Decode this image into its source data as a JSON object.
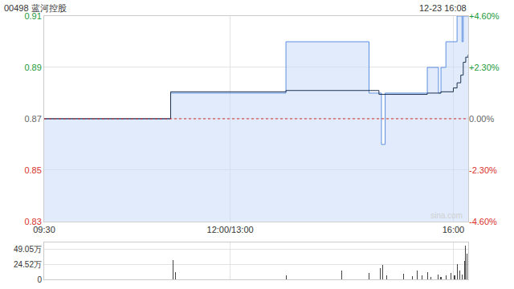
{
  "chart_data": [
    {
      "type": "line",
      "title": "00498 蓝河控股",
      "subtitle": "12-23 16:08",
      "annotations": [
        "sina.com"
      ],
      "prev_close": 0.87,
      "xlim": [
        0,
        342
      ],
      "xticks": [
        {
          "value": 0,
          "label": "09:30"
        },
        {
          "value": 150,
          "label": "12:00/13:00"
        },
        {
          "value": 330,
          "label": "16:00"
        }
      ],
      "ylim": [
        0.83,
        0.91
      ],
      "yticks": [
        0.83,
        0.85,
        0.87,
        0.89,
        0.91
      ],
      "y2lim": [
        -4.6,
        4.6
      ],
      "y2ticks": [
        {
          "value": -4.6,
          "label": "-4.60%"
        },
        {
          "value": -2.3,
          "label": "-2.30%"
        },
        {
          "value": 0,
          "label": "0.00%"
        },
        {
          "value": 2.3,
          "label": "+2.30%"
        },
        {
          "value": 4.6,
          "label": "+4.60%"
        }
      ],
      "grid": true,
      "series": [
        {
          "type": "area",
          "color": "#5b8fe0",
          "line_style": "step",
          "x": [
            0,
            102,
            195,
            262,
            272,
            275,
            309,
            318,
            320,
            324,
            333,
            337,
            338,
            342
          ],
          "values": [
            0.87,
            0.88,
            0.9,
            0.88,
            0.86,
            0.88,
            0.89,
            0.88,
            0.89,
            0.9,
            0.91,
            0.9,
            0.91,
            0.91
          ]
        },
        {
          "type": "line",
          "color": "#1f3350",
          "line_style": "step",
          "x": [
            0,
            102,
            195,
            270,
            309,
            320,
            330,
            333,
            336,
            338,
            340,
            342
          ],
          "values": [
            0.87,
            0.8805,
            0.881,
            0.8795,
            0.88,
            0.8805,
            0.882,
            0.884,
            0.887,
            0.892,
            0.894,
            0.895
          ]
        }
      ]
    },
    {
      "type": "bar",
      "xlim": [
        0,
        342
      ],
      "xticks": [
        {
          "value": 0,
          "label": "09:30"
        },
        {
          "value": 150,
          "label": "12:00/13:00"
        },
        {
          "value": 330,
          "label": "16:00"
        }
      ],
      "ylim": [
        0,
        600000
      ],
      "yticks": [
        0,
        {
          "value": 245200,
          "label": "24.52万"
        },
        {
          "value": 490500,
          "label": "49.05万"
        }
      ],
      "grid": true,
      "tick_labels": "y",
      "color": "#444444",
      "x": [
        104,
        106,
        195,
        240,
        262,
        271,
        273,
        276,
        290,
        297,
        301,
        305,
        309,
        312,
        318,
        320,
        324,
        328,
        331,
        333,
        335,
        337,
        339,
        340,
        341
      ],
      "values": [
        320000,
        120000,
        60000,
        150000,
        100000,
        180000,
        230000,
        60000,
        90000,
        50000,
        150000,
        60000,
        120000,
        40000,
        80000,
        40000,
        60000,
        100000,
        70000,
        250000,
        150000,
        80000,
        300000,
        550000,
        420000
      ]
    }
  ]
}
